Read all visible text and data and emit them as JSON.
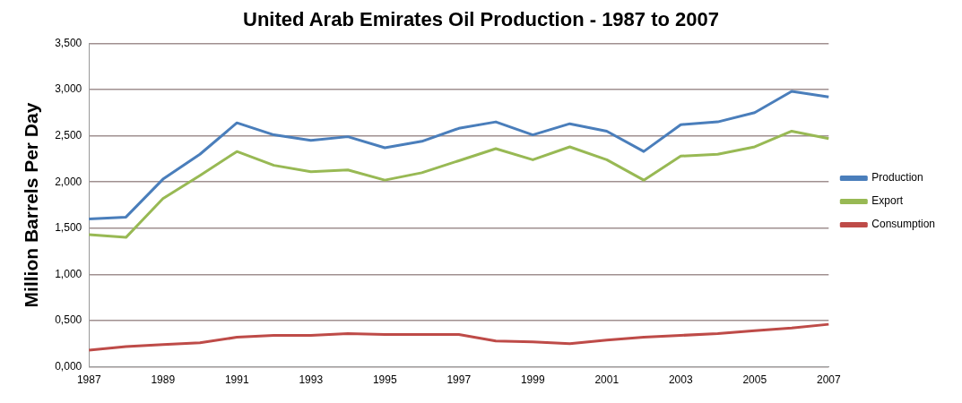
{
  "chart_data": {
    "type": "line",
    "title": "United Arab Emirates Oil Production - 1987 to 2007",
    "ylabel": "Million Barrels Per Day",
    "categories": [
      "1987",
      null,
      "1989",
      null,
      "1991",
      null,
      "1993",
      null,
      "1995",
      null,
      "1997",
      null,
      "1999",
      null,
      "2001",
      null,
      "2003",
      null,
      "2005",
      null,
      "2007"
    ],
    "series": [
      {
        "name": "Production",
        "color": "#4a7ebb",
        "values": [
          1.6,
          1.62,
          2.03,
          2.3,
          2.64,
          2.51,
          2.45,
          2.49,
          2.37,
          2.44,
          2.58,
          2.65,
          2.51,
          2.63,
          2.55,
          2.33,
          2.62,
          2.65,
          2.75,
          2.98,
          2.92
        ]
      },
      {
        "name": "Export",
        "color": "#98b954",
        "values": [
          1.43,
          1.4,
          1.82,
          2.07,
          2.33,
          2.18,
          2.11,
          2.13,
          2.02,
          2.1,
          2.23,
          2.36,
          2.24,
          2.38,
          2.24,
          2.02,
          2.28,
          2.3,
          2.38,
          2.55,
          2.47
        ]
      },
      {
        "name": "Consumption",
        "color": "#be4b48",
        "values": [
          0.18,
          0.22,
          0.24,
          0.26,
          0.32,
          0.34,
          0.34,
          0.36,
          0.35,
          0.35,
          0.35,
          0.28,
          0.27,
          0.25,
          0.29,
          0.32,
          0.34,
          0.36,
          0.39,
          0.42,
          0.46
        ]
      }
    ],
    "ylim": [
      0,
      3.5
    ],
    "yticks": [
      {
        "value": 0,
        "label": "0,000"
      },
      {
        "value": 0.5,
        "label": "0,500"
      },
      {
        "value": 1,
        "label": "1,000"
      },
      {
        "value": 1.5,
        "label": "1,500"
      },
      {
        "value": 2,
        "label": "2,000"
      },
      {
        "value": 2.5,
        "label": "2,500"
      },
      {
        "value": 3,
        "label": "3,000"
      },
      {
        "value": 3.5,
        "label": "3,500"
      }
    ],
    "grid": "y",
    "legend": "right",
    "marker": "none",
    "line_style": "solid"
  }
}
